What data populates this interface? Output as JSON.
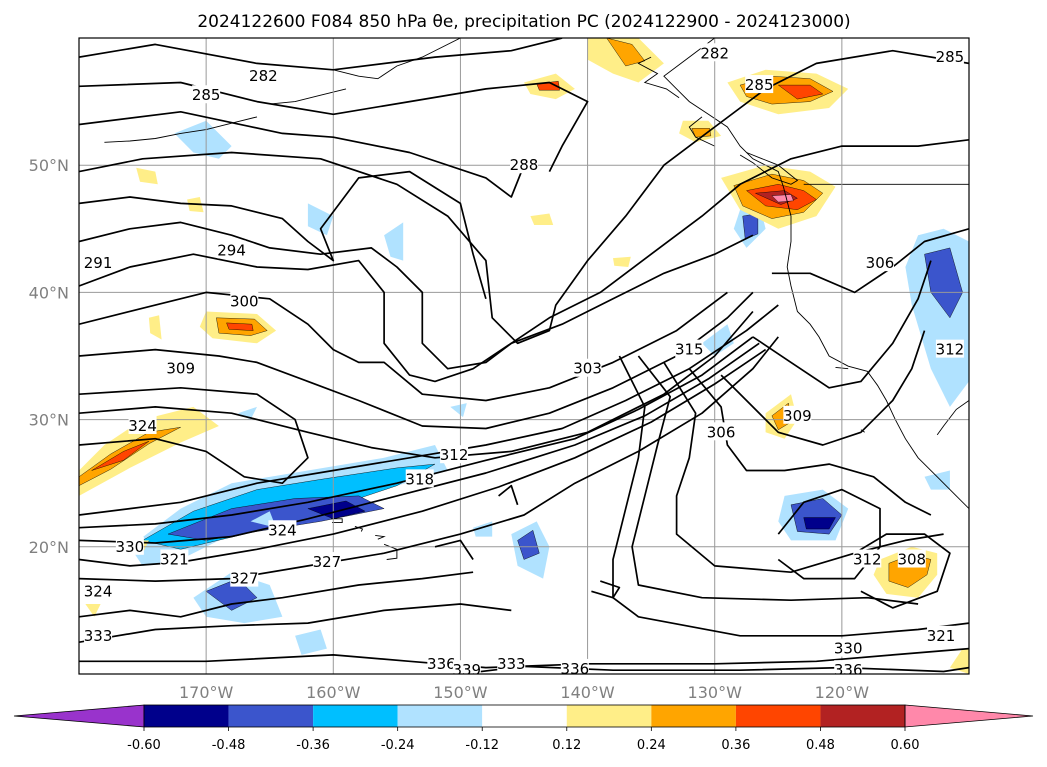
{
  "chart_data": {
    "type": "contour_map",
    "title": "2024122600 F084 850 hPa θe, precipitation PC (2024122900 - 2024123000)",
    "lon_range": [
      -180,
      -110
    ],
    "lat_range": [
      10,
      60
    ],
    "x_ticks": [
      "170°W",
      "160°W",
      "150°W",
      "140°W",
      "130°W",
      "120°W"
    ],
    "y_ticks": [
      "20°N",
      "30°N",
      "40°N",
      "50°N"
    ],
    "grid": true,
    "contour_labels": [
      {
        "text": "282",
        "lon": -165.5,
        "lat": 57.0
      },
      {
        "text": "285",
        "lon": -170.0,
        "lat": 55.5
      },
      {
        "text": "288",
        "lon": -145.0,
        "lat": 50.0
      },
      {
        "text": "291",
        "lon": -178.5,
        "lat": 42.3
      },
      {
        "text": "294",
        "lon": -168.0,
        "lat": 43.3
      },
      {
        "text": "300",
        "lon": -167.0,
        "lat": 39.3
      },
      {
        "text": "309",
        "lon": -172.0,
        "lat": 34.0
      },
      {
        "text": "324",
        "lon": -175.0,
        "lat": 29.5
      },
      {
        "text": "312",
        "lon": -150.5,
        "lat": 27.2
      },
      {
        "text": "318",
        "lon": -153.2,
        "lat": 25.3
      },
      {
        "text": "303",
        "lon": -140.0,
        "lat": 34.0
      },
      {
        "text": "315",
        "lon": -132.0,
        "lat": 35.5
      },
      {
        "text": "306",
        "lon": -129.5,
        "lat": 29.0
      },
      {
        "text": "324",
        "lon": -164.0,
        "lat": 21.3
      },
      {
        "text": "330",
        "lon": -176.0,
        "lat": 20.0
      },
      {
        "text": "321",
        "lon": -172.5,
        "lat": 19.0
      },
      {
        "text": "327",
        "lon": -160.5,
        "lat": 18.8
      },
      {
        "text": "327",
        "lon": -167.0,
        "lat": 17.5
      },
      {
        "text": "324",
        "lon": -178.5,
        "lat": 16.5
      },
      {
        "text": "333",
        "lon": -178.5,
        "lat": 13.0
      },
      {
        "text": "336",
        "lon": -151.5,
        "lat": 10.8
      },
      {
        "text": "339",
        "lon": -149.5,
        "lat": 10.3
      },
      {
        "text": "333",
        "lon": -146.0,
        "lat": 10.8
      },
      {
        "text": "336",
        "lon": -141.0,
        "lat": 10.4
      },
      {
        "text": "330",
        "lon": -119.5,
        "lat": 12.0
      },
      {
        "text": "336",
        "lon": -119.5,
        "lat": 10.3
      },
      {
        "text": "321",
        "lon": -112.2,
        "lat": 13.0
      },
      {
        "text": "309",
        "lon": -123.5,
        "lat": 30.3
      },
      {
        "text": "312",
        "lon": -118.0,
        "lat": 19.0
      },
      {
        "text": "308",
        "lon": -114.5,
        "lat": 19.0
      },
      {
        "text": "312",
        "lon": -111.5,
        "lat": 35.5
      },
      {
        "text": "306",
        "lon": -117.0,
        "lat": 42.3
      },
      {
        "text": "282",
        "lon": -130.0,
        "lat": 58.8
      },
      {
        "text": "285",
        "lon": -126.5,
        "lat": 56.3
      },
      {
        "text": "285",
        "lon": -111.5,
        "lat": 58.5
      }
    ],
    "colorbar": {
      "levels": [
        "-0.60",
        "-0.48",
        "-0.36",
        "-0.24",
        "-0.12",
        "0.12",
        "0.24",
        "0.36",
        "0.48",
        "0.60"
      ],
      "colors": [
        "#9933cc",
        "#00008b",
        "#3b55cc",
        "#00bfff",
        "#b0e2ff",
        "#ffffff",
        "#ffee88",
        "#ffa500",
        "#ff4500",
        "#b22222",
        "#ff88aa"
      ],
      "extend": "both"
    }
  }
}
